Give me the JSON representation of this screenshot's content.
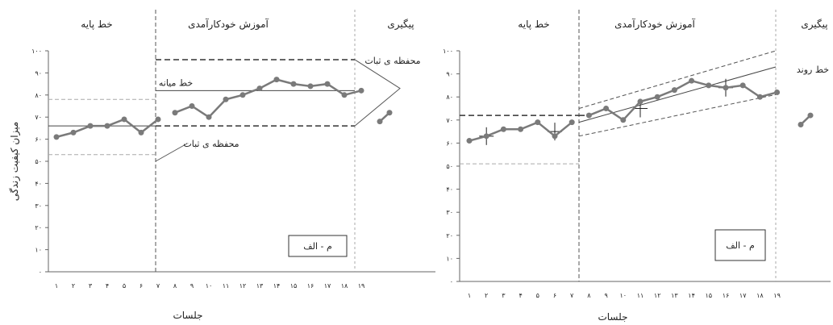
{
  "chart_data": [
    {
      "type": "line",
      "ylim": [
        0,
        100
      ],
      "yticks": [
        "۰",
        "۱۰",
        "۲۰",
        "۳۰",
        "۴۰",
        "۵۰",
        "۶۰",
        "۷۰",
        "۸۰",
        "۹۰",
        "۱۰۰"
      ],
      "ylabel": "میزان کیفیت زندگی",
      "xlabel": "جلسات",
      "phases": [
        "خط پایه",
        "آموزش خودکارآمدی",
        "پیگیری"
      ],
      "series": [
        {
          "values": [
            61,
            63,
            66,
            66,
            69,
            63,
            69,
            72,
            75,
            70,
            78,
            80,
            83,
            87,
            85,
            84,
            85,
            80,
            82
          ],
          "color": "#7a7a7a"
        }
      ],
      "followup": [
        68,
        72
      ],
      "reference_lines": {
        "baseline_mean": 66,
        "baseline_band": [
          53,
          78
        ],
        "treatment_mean": 82,
        "treatment_band": [
          66,
          96
        ]
      },
      "annotations": [
        "خط میانه",
        "محفظه ی ثبات",
        "محفظه ی ثبات"
      ],
      "label_box": "م - الف",
      "grid": false,
      "legend": "none"
    },
    {
      "type": "line",
      "ylim": [
        0,
        100
      ],
      "yticks": [
        "۰",
        "۱۰",
        "۲۰",
        "۳۰",
        "۴۰",
        "۵۰",
        "۶۰",
        "۷۰",
        "۸۰",
        "۹۰",
        "۱۰۰"
      ],
      "ylabel": "",
      "xlabel": "جلسات",
      "phases": [
        "خط پایه",
        "آموزش خودکارآمدی",
        "پیگیری"
      ],
      "series": [
        {
          "values": [
            61,
            63,
            66,
            66,
            69,
            63,
            69,
            72,
            75,
            70,
            78,
            80,
            83,
            87,
            85,
            84,
            85,
            80,
            82
          ],
          "color": "#7a7a7a"
        }
      ],
      "followup": [
        68,
        72
      ],
      "reference_lines": {
        "baseline_level": 72,
        "baseline_lower": 51,
        "trend_line": [
          69,
          93
        ],
        "trend_upper": [
          75,
          100
        ],
        "trend_lower": [
          63,
          81
        ]
      },
      "annotations": [
        "خط روند"
      ],
      "label_box": "م - الف",
      "grid": false,
      "legend": "none"
    }
  ]
}
